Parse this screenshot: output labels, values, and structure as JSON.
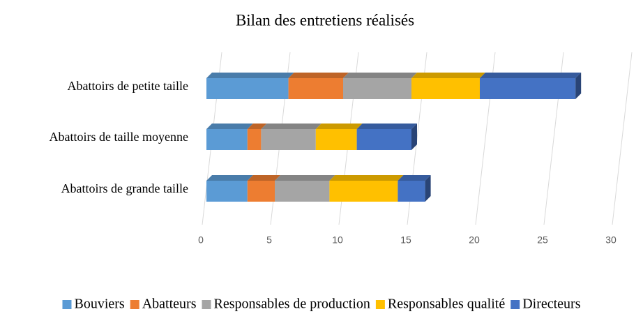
{
  "chart_data": {
    "type": "bar",
    "orientation": "horizontal",
    "stacked": true,
    "three_d": true,
    "title": "Bilan des entretiens réalisés",
    "categories": [
      "Abattoirs de petite taille",
      "Abattoirs de taille moyenne",
      "Abattoirs de grande taille"
    ],
    "series": [
      {
        "name": "Bouviers",
        "color": "#5b9bd5",
        "values": [
          6,
          3,
          3
        ]
      },
      {
        "name": "Abatteurs",
        "color": "#ed7d31",
        "values": [
          4,
          1,
          2
        ]
      },
      {
        "name": "Responsables de production",
        "color": "#a5a5a5",
        "values": [
          5,
          4,
          4
        ]
      },
      {
        "name": "Responsables qualité",
        "color": "#ffc000",
        "values": [
          5,
          3,
          5
        ]
      },
      {
        "name": "Directeurs",
        "color": "#4472c4",
        "values": [
          7,
          4,
          2
        ]
      }
    ],
    "xlim": [
      0,
      30
    ],
    "xticks": [
      0,
      5,
      10,
      15,
      20,
      25,
      30
    ],
    "grid": true,
    "legend": "bottom"
  }
}
